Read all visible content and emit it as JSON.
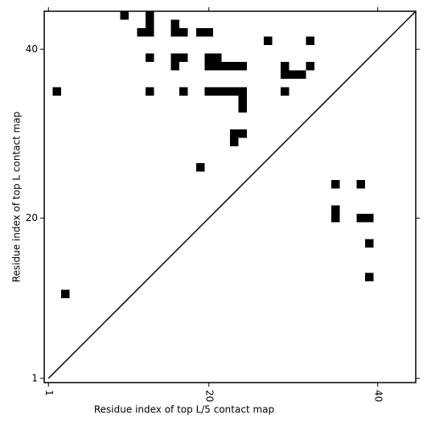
{
  "chart_data": {
    "type": "heatmap",
    "x_label": "Residue index of top L/5 contact map",
    "y_label": "Residue index of top L contact map",
    "color": "#000000",
    "xlim": [
      0.5,
      44.5
    ],
    "ylim": [
      0.5,
      44.5
    ],
    "xticks": [
      1,
      20,
      40
    ],
    "yticks": [
      1,
      20,
      40
    ],
    "x": [
      10,
      13,
      13,
      12,
      13,
      16,
      16,
      17,
      19,
      20,
      27,
      32,
      13,
      16,
      17,
      16,
      20,
      21,
      20,
      21,
      22,
      23,
      24,
      29,
      29,
      30,
      31,
      32,
      2,
      13,
      17,
      20,
      21,
      22,
      23,
      24,
      24,
      24,
      29,
      23,
      24,
      23,
      19,
      35,
      38,
      35,
      35,
      38,
      39,
      39,
      39,
      3
    ],
    "y": [
      44,
      44,
      43,
      42,
      42,
      43,
      42,
      42,
      42,
      42,
      41,
      41,
      39,
      39,
      39,
      38,
      39,
      39,
      38,
      38,
      38,
      38,
      38,
      38,
      37,
      37,
      37,
      38,
      35,
      35,
      35,
      35,
      35,
      35,
      35,
      35,
      34,
      33,
      35,
      30,
      30,
      29,
      26,
      24,
      24,
      21,
      20,
      20,
      20,
      17,
      13,
      11
    ]
  }
}
